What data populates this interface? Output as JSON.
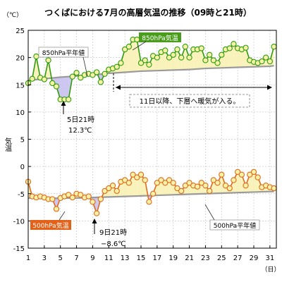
{
  "chart_data": {
    "type": "line",
    "title": "つくばにおける7月の高層気温の推移（09時と21時）",
    "unit_label": "（℃）",
    "ylabel": "気温",
    "xlabel": "（日）",
    "ylim": [
      -15,
      25
    ],
    "yticks": [
      25,
      20,
      15,
      10,
      5,
      0,
      -5,
      -10,
      -15
    ],
    "xlim": [
      1,
      31.8
    ],
    "xticks": [
      1,
      3,
      5,
      7,
      9,
      11,
      13,
      15,
      17,
      19,
      21,
      23,
      25,
      27,
      29,
      31
    ],
    "grid": true,
    "series": [
      {
        "name": "850hPa気温",
        "color": "#2e9b0e",
        "marker_fill": "#f6f1a6",
        "x": [
          1,
          1.5,
          2,
          2.5,
          3,
          3.5,
          4,
          4.5,
          5,
          5.5,
          6,
          6.5,
          7,
          7.5,
          8,
          8.5,
          9,
          9.5,
          10,
          10.5,
          11,
          11.5,
          12,
          12.5,
          13,
          13.5,
          14,
          14.5,
          15,
          15.5,
          16,
          16.5,
          17,
          17.5,
          18,
          18.5,
          19,
          19.5,
          20,
          20.5,
          21,
          21.5,
          22,
          22.5,
          23,
          23.5,
          24,
          24.5,
          25,
          25.5,
          26,
          26.5,
          27,
          27.5,
          28,
          28.5,
          29,
          29.5,
          30,
          30.5,
          31,
          31.5
        ],
        "values": [
          15.3,
          16.1,
          20.2,
          16.3,
          16.0,
          19.5,
          15.3,
          14.7,
          12.3,
          12.3,
          12.3,
          16.5,
          17.2,
          16.3,
          16.8,
          17.0,
          16.8,
          17.3,
          15.5,
          17.0,
          17.8,
          18.0,
          18.3,
          19.0,
          21.5,
          22.0,
          23.3,
          23.3,
          19.0,
          19.5,
          18.7,
          20.3,
          20.0,
          21.0,
          21.3,
          20.0,
          20.5,
          21.5,
          20.0,
          22.0,
          20.0,
          21.5,
          21.5,
          21.7,
          19.5,
          20.5,
          19.5,
          19.0,
          20.5,
          21.5,
          21.7,
          22.5,
          21.7,
          21.5,
          21.8,
          19.5,
          19.2,
          19.0,
          19.3,
          20.0,
          19.3,
          22.0
        ]
      },
      {
        "name": "850hPa平年値",
        "color": "#9a9a9a",
        "x": [
          1,
          3,
          5,
          7,
          9,
          11,
          13,
          15,
          17,
          19,
          21,
          23,
          25,
          27,
          29,
          31,
          31.5
        ],
        "values": [
          15.8,
          16.1,
          16.4,
          16.6,
          16.8,
          17.1,
          17.3,
          17.5,
          17.6,
          17.7,
          17.8,
          18.0,
          18.1,
          18.2,
          18.3,
          18.4,
          18.5
        ]
      },
      {
        "name": "500hPa気温",
        "color": "#e06a1c",
        "marker_fill": "#f6f1a6",
        "x": [
          1,
          1.5,
          2,
          2.5,
          3,
          3.5,
          4,
          4.5,
          5,
          5.5,
          6,
          6.5,
          7,
          7.5,
          8,
          8.5,
          9,
          9.5,
          10,
          10.5,
          11,
          11.5,
          12,
          12.5,
          13,
          13.5,
          14,
          14.5,
          15,
          15.5,
          16,
          16.5,
          17,
          17.5,
          18,
          18.5,
          19,
          19.5,
          20,
          20.5,
          21,
          21.5,
          22,
          22.5,
          23,
          23.5,
          24,
          24.5,
          25,
          25.5,
          26,
          26.5,
          27,
          27.5,
          28,
          28.5,
          29,
          29.5,
          30,
          30.5,
          31,
          31.5
        ],
        "values": [
          -2.8,
          -5.5,
          -5.7,
          -5.5,
          -5.7,
          -6.0,
          -6.0,
          -7.8,
          -5.8,
          -5.5,
          -5.2,
          -5.7,
          -5.0,
          -5.2,
          -5.7,
          -5.5,
          -6.5,
          -8.6,
          -6.0,
          -4.5,
          -4.0,
          -3.5,
          -4.5,
          -2.8,
          -2.5,
          -3.0,
          -1.5,
          -2.0,
          -1.5,
          -2.5,
          -6.5,
          -5.0,
          -3.0,
          -2.5,
          -3.0,
          -2.5,
          -3.0,
          -4.0,
          -4.5,
          -3.5,
          -3.0,
          -3.5,
          -3.7,
          -3.0,
          -3.5,
          -4.5,
          -2.5,
          -3.0,
          -1.5,
          -3.5,
          -4.0,
          -2.5,
          -1.0,
          -1.5,
          -3.5,
          -1.5,
          -1.0,
          -2.0,
          -3.8,
          -3.5,
          -3.8,
          -4.0
        ]
      },
      {
        "name": "500hPa平年値",
        "color": "#9a9a9a",
        "x": [
          1,
          3,
          5,
          7,
          9,
          11,
          13,
          15,
          17,
          19,
          21,
          23,
          25,
          27,
          29,
          31,
          31.5
        ],
        "values": [
          -5.8,
          -5.9,
          -5.8,
          -5.8,
          -5.7,
          -5.6,
          -5.5,
          -5.4,
          -5.3,
          -5.2,
          -5.1,
          -5.0,
          -4.9,
          -4.8,
          -4.7,
          -4.6,
          -4.6
        ]
      }
    ],
    "annotations": {
      "label_850": "850hPa気温",
      "label_850_normal": "850hPa平年値",
      "label_500": "500hPa気温",
      "label_500_normal": "500hPa平年値",
      "callout_day": "11日以降、下層へ暖気が入る。",
      "min850_date": "5日21時",
      "min850_value": "12.3℃",
      "min500_date": "9日21時",
      "min500_value": "−8.6℃"
    }
  }
}
